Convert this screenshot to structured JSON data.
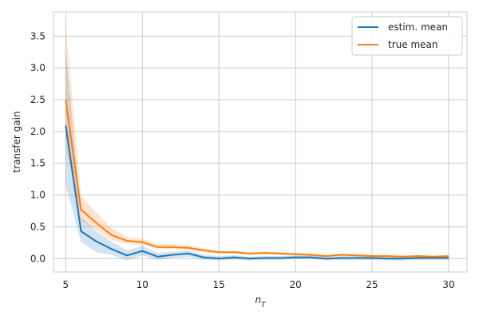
{
  "chart_data": {
    "type": "line",
    "title": "",
    "xlabel": "n",
    "xlabel_subscript": "T",
    "ylabel": "transfer gain",
    "xlim": [
      4.2,
      31.2
    ],
    "ylim": [
      -0.21,
      3.88
    ],
    "xticks": [
      5,
      10,
      15,
      20,
      25,
      30
    ],
    "yticks": [
      0.0,
      0.5,
      1.0,
      1.5,
      2.0,
      2.5,
      3.0,
      3.5
    ],
    "xtick_labels": [
      "5",
      "10",
      "15",
      "20",
      "25",
      "30"
    ],
    "ytick_labels": [
      "0.0",
      "0.5",
      "1.0",
      "1.5",
      "2.0",
      "2.5",
      "3.0",
      "3.5"
    ],
    "grid": true,
    "legend_position": "top-right",
    "x": [
      5,
      6,
      7,
      8,
      9,
      10,
      11,
      12,
      13,
      14,
      15,
      16,
      17,
      18,
      19,
      20,
      21,
      22,
      23,
      24,
      25,
      26,
      27,
      28,
      29,
      30
    ],
    "series": [
      {
        "name": "estim. mean",
        "color": "#1f77b4",
        "values": [
          2.09,
          0.43,
          0.27,
          0.15,
          0.05,
          0.12,
          0.03,
          0.06,
          0.08,
          0.02,
          0.0,
          0.02,
          0.0,
          0.01,
          0.01,
          0.02,
          0.02,
          0.0,
          0.01,
          0.01,
          0.01,
          0.0,
          0.0,
          0.01,
          0.01,
          0.01
        ],
        "lower": [
          1.15,
          0.26,
          0.1,
          0.06,
          -0.03,
          0.05,
          -0.02,
          0.01,
          0.03,
          -0.02,
          -0.03,
          -0.02,
          -0.03,
          -0.02,
          -0.02,
          -0.01,
          -0.01,
          -0.03,
          -0.02,
          -0.02,
          -0.02,
          -0.03,
          -0.03,
          -0.02,
          -0.02,
          -0.02
        ],
        "upper": [
          3.3,
          0.66,
          0.43,
          0.27,
          0.13,
          0.2,
          0.09,
          0.11,
          0.13,
          0.06,
          0.04,
          0.05,
          0.03,
          0.04,
          0.04,
          0.05,
          0.05,
          0.03,
          0.04,
          0.04,
          0.04,
          0.03,
          0.03,
          0.04,
          0.04,
          0.04
        ]
      },
      {
        "name": "true mean",
        "color": "#ff7f0e",
        "values": [
          2.49,
          0.77,
          0.56,
          0.37,
          0.28,
          0.26,
          0.18,
          0.18,
          0.17,
          0.13,
          0.1,
          0.1,
          0.08,
          0.09,
          0.08,
          0.07,
          0.06,
          0.04,
          0.06,
          0.05,
          0.04,
          0.04,
          0.03,
          0.04,
          0.03,
          0.04
        ],
        "lower": [
          1.77,
          0.59,
          0.45,
          0.29,
          0.23,
          0.22,
          0.15,
          0.15,
          0.14,
          0.1,
          0.08,
          0.08,
          0.06,
          0.07,
          0.06,
          0.05,
          0.04,
          0.03,
          0.04,
          0.03,
          0.02,
          0.02,
          0.02,
          0.02,
          0.02,
          0.02
        ],
        "upper": [
          3.66,
          0.99,
          0.72,
          0.48,
          0.34,
          0.31,
          0.23,
          0.23,
          0.21,
          0.16,
          0.12,
          0.12,
          0.1,
          0.11,
          0.1,
          0.09,
          0.08,
          0.06,
          0.08,
          0.07,
          0.06,
          0.06,
          0.05,
          0.06,
          0.05,
          0.06
        ]
      }
    ]
  }
}
